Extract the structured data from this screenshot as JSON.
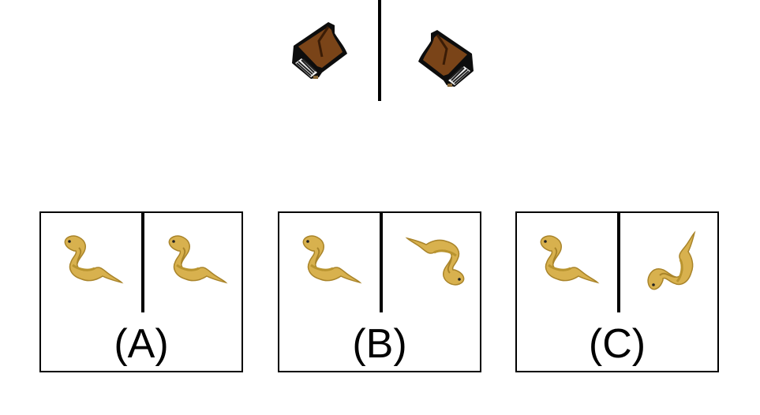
{
  "prompt": {
    "left_icon": "grand-piano-icon",
    "right_icon": "grand-piano-icon"
  },
  "options": [
    {
      "label": "(A)",
      "left_icon": "coiled-snake-icon",
      "right_icon": "coiled-snake-icon"
    },
    {
      "label": "(B)",
      "left_icon": "coiled-snake-icon",
      "right_icon": "coiled-snake-icon"
    },
    {
      "label": "(C)",
      "left_icon": "coiled-snake-icon",
      "right_icon": "coiled-snake-icon"
    }
  ],
  "colors": {
    "piano_body": "#0d0d0d",
    "piano_wood": "#7a4418",
    "snake_fill": "#d8b14e",
    "snake_shade": "#a9842a",
    "line": "#000000"
  }
}
